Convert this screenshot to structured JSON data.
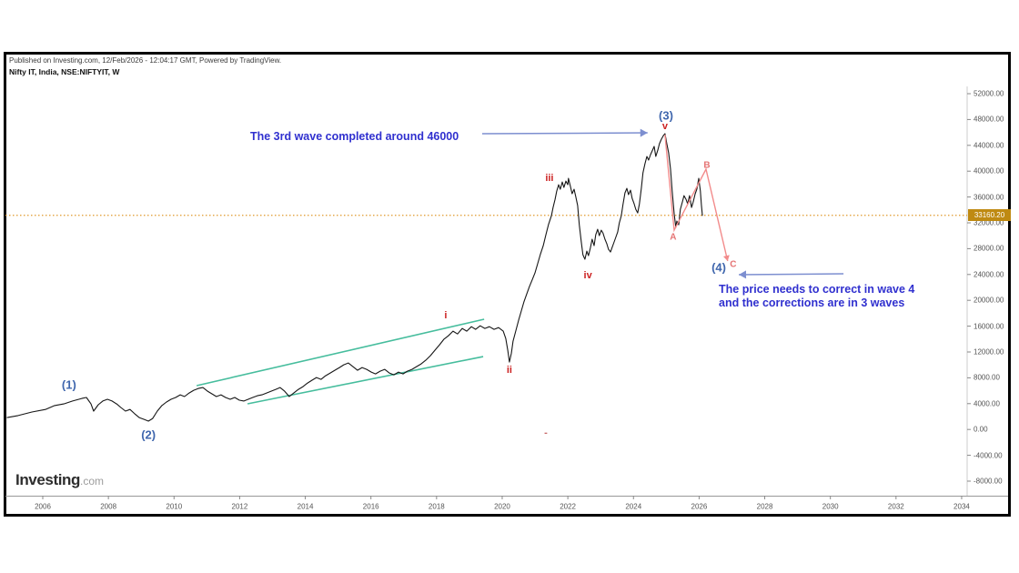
{
  "header": {
    "published_line": "Published on Investing.com, 12/Feb/2026 - 12:04:17 GMT, Powered by TradingView.",
    "symbol_line": "Nifty IT, India, NSE:NIFTYIT, W"
  },
  "logo": {
    "brand": "Investing",
    "suffix": ".com"
  },
  "colors": {
    "price_line": "#161616",
    "channel_green": "#46bd9d",
    "hline_orange": "#e19a2e",
    "badge_bg": "#bf8a12",
    "note_blue": "#3030cf",
    "arrow_blue": "#7d8fd0",
    "wave_blue": "#3f66ad",
    "wave_red": "#cc2222",
    "wave_pink": "#e57373",
    "correction_pink": "#f28b8b"
  },
  "chart_data": {
    "type": "line",
    "title": "Nifty IT, India, NSE:NIFTYIT, W",
    "xlabel": "",
    "ylabel": "",
    "grid": false,
    "legend": "none",
    "xlim": [
      2004.92,
      2034.17
    ],
    "ylim": [
      -10250,
      53130
    ],
    "x_tick_values": [
      2006,
      2008,
      2010,
      2012,
      2014,
      2016,
      2018,
      2020,
      2022,
      2024,
      2026,
      2028,
      2030,
      2032,
      2034
    ],
    "x_tick_labels": [
      "2006",
      "2008",
      "2010",
      "2012",
      "2014",
      "2016",
      "2018",
      "2020",
      "2022",
      "2024",
      "2026",
      "2028",
      "2030",
      "2032",
      "2034"
    ],
    "y_tick_values": [
      52000,
      48000,
      44000,
      40000,
      36000,
      32000,
      28000,
      24000,
      20000,
      16000,
      12000,
      8000,
      4000,
      0,
      -4000,
      -8000
    ],
    "y_tick_labels": [
      "52000.00",
      "48000.00",
      "44000.00",
      "40000.00",
      "36000.00",
      "32000.00",
      "28000.00",
      "24000.00",
      "20000.00",
      "16000.00",
      "12000.00",
      "8000.00",
      "4000.00",
      "0.00",
      "-4000.00",
      "-8000.00"
    ],
    "last_price": 33160.2,
    "last_price_label": "33160.20",
    "hline": {
      "price": 33160.2
    },
    "series": [
      {
        "name": "NIFTYIT weekly close",
        "points": [
          [
            2004.92,
            1850
          ],
          [
            2005.25,
            2150
          ],
          [
            2005.67,
            2700
          ],
          [
            2006.08,
            3100
          ],
          [
            2006.36,
            3700
          ],
          [
            2006.64,
            3950
          ],
          [
            2006.91,
            4400
          ],
          [
            2007.19,
            4800
          ],
          [
            2007.33,
            4950
          ],
          [
            2007.47,
            3950
          ],
          [
            2007.55,
            2850
          ],
          [
            2007.69,
            3830
          ],
          [
            2007.83,
            4400
          ],
          [
            2007.97,
            4675
          ],
          [
            2008.11,
            4400
          ],
          [
            2008.25,
            3950
          ],
          [
            2008.38,
            3400
          ],
          [
            2008.52,
            2850
          ],
          [
            2008.66,
            3100
          ],
          [
            2008.8,
            2430
          ],
          [
            2008.94,
            1850
          ],
          [
            2009.08,
            1570
          ],
          [
            2009.22,
            1290
          ],
          [
            2009.35,
            1700
          ],
          [
            2009.49,
            2850
          ],
          [
            2009.63,
            3700
          ],
          [
            2009.77,
            4250
          ],
          [
            2009.91,
            4675
          ],
          [
            2010.05,
            4950
          ],
          [
            2010.19,
            5370
          ],
          [
            2010.32,
            5090
          ],
          [
            2010.46,
            5650
          ],
          [
            2010.6,
            6070
          ],
          [
            2010.74,
            6350
          ],
          [
            2010.88,
            6490
          ],
          [
            2011.02,
            5930
          ],
          [
            2011.16,
            5500
          ],
          [
            2011.29,
            5090
          ],
          [
            2011.43,
            5370
          ],
          [
            2011.57,
            4950
          ],
          [
            2011.71,
            4675
          ],
          [
            2011.85,
            4950
          ],
          [
            2011.99,
            4530
          ],
          [
            2012.13,
            4400
          ],
          [
            2012.26,
            4675
          ],
          [
            2012.4,
            4950
          ],
          [
            2012.54,
            5230
          ],
          [
            2012.68,
            5370
          ],
          [
            2012.82,
            5650
          ],
          [
            2012.96,
            5930
          ],
          [
            2013.1,
            6210
          ],
          [
            2013.23,
            6490
          ],
          [
            2013.37,
            5930
          ],
          [
            2013.51,
            5090
          ],
          [
            2013.65,
            5650
          ],
          [
            2013.79,
            6210
          ],
          [
            2013.93,
            6630
          ],
          [
            2014.07,
            7200
          ],
          [
            2014.2,
            7620
          ],
          [
            2014.34,
            8040
          ],
          [
            2014.48,
            7760
          ],
          [
            2014.62,
            8320
          ],
          [
            2014.76,
            8740
          ],
          [
            2014.9,
            9170
          ],
          [
            2015.04,
            9590
          ],
          [
            2015.17,
            10010
          ],
          [
            2015.31,
            10290
          ],
          [
            2015.45,
            9730
          ],
          [
            2015.59,
            9170
          ],
          [
            2015.73,
            9590
          ],
          [
            2015.87,
            9310
          ],
          [
            2016.01,
            8890
          ],
          [
            2016.14,
            8600
          ],
          [
            2016.28,
            9030
          ],
          [
            2016.42,
            9310
          ],
          [
            2016.56,
            8740
          ],
          [
            2016.7,
            8460
          ],
          [
            2016.84,
            8890
          ],
          [
            2016.98,
            8600
          ],
          [
            2017.11,
            9030
          ],
          [
            2017.25,
            9310
          ],
          [
            2017.39,
            9730
          ],
          [
            2017.53,
            10150
          ],
          [
            2017.67,
            10710
          ],
          [
            2017.81,
            11420
          ],
          [
            2017.95,
            12260
          ],
          [
            2018.09,
            13110
          ],
          [
            2018.22,
            13950
          ],
          [
            2018.36,
            14510
          ],
          [
            2018.5,
            15220
          ],
          [
            2018.64,
            14790
          ],
          [
            2018.78,
            15640
          ],
          [
            2018.92,
            15220
          ],
          [
            2019.06,
            15920
          ],
          [
            2019.19,
            15500
          ],
          [
            2019.33,
            16060
          ],
          [
            2019.47,
            15640
          ],
          [
            2019.61,
            15920
          ],
          [
            2019.75,
            15500
          ],
          [
            2019.89,
            15780
          ],
          [
            2020.03,
            15220
          ],
          [
            2020.11,
            14090
          ],
          [
            2020.17,
            12260
          ],
          [
            2020.22,
            10430
          ],
          [
            2020.28,
            11840
          ],
          [
            2020.33,
            13670
          ],
          [
            2020.42,
            15360
          ],
          [
            2020.5,
            16910
          ],
          [
            2020.58,
            18320
          ],
          [
            2020.66,
            19730
          ],
          [
            2020.75,
            21000
          ],
          [
            2020.83,
            22130
          ],
          [
            2020.91,
            23110
          ],
          [
            2021.0,
            24240
          ],
          [
            2021.08,
            25650
          ],
          [
            2021.16,
            27060
          ],
          [
            2021.25,
            28460
          ],
          [
            2021.33,
            30150
          ],
          [
            2021.41,
            31700
          ],
          [
            2021.5,
            33110
          ],
          [
            2021.55,
            34380
          ],
          [
            2021.61,
            35650
          ],
          [
            2021.66,
            36920
          ],
          [
            2021.72,
            37900
          ],
          [
            2021.77,
            37200
          ],
          [
            2021.83,
            38320
          ],
          [
            2021.88,
            37480
          ],
          [
            2021.94,
            38460
          ],
          [
            2022.0,
            37900
          ],
          [
            2022.02,
            38880
          ],
          [
            2022.08,
            37620
          ],
          [
            2022.13,
            36500
          ],
          [
            2022.19,
            37200
          ],
          [
            2022.24,
            36080
          ],
          [
            2022.3,
            34670
          ],
          [
            2022.35,
            31700
          ],
          [
            2022.41,
            29040
          ],
          [
            2022.46,
            27060
          ],
          [
            2022.52,
            26360
          ],
          [
            2022.58,
            27620
          ],
          [
            2022.63,
            26920
          ],
          [
            2022.69,
            28180
          ],
          [
            2022.74,
            29460
          ],
          [
            2022.8,
            28460
          ],
          [
            2022.85,
            30150
          ],
          [
            2022.91,
            31000
          ],
          [
            2022.96,
            30010
          ],
          [
            2023.02,
            30860
          ],
          [
            2023.07,
            30440
          ],
          [
            2023.13,
            29460
          ],
          [
            2023.19,
            28740
          ],
          [
            2023.24,
            27900
          ],
          [
            2023.3,
            27480
          ],
          [
            2023.35,
            28180
          ],
          [
            2023.41,
            29040
          ],
          [
            2023.46,
            29740
          ],
          [
            2023.52,
            30580
          ],
          [
            2023.57,
            31990
          ],
          [
            2023.63,
            33110
          ],
          [
            2023.68,
            34800
          ],
          [
            2023.74,
            36640
          ],
          [
            2023.8,
            37340
          ],
          [
            2023.85,
            36360
          ],
          [
            2023.91,
            37060
          ],
          [
            2023.96,
            35790
          ],
          [
            2024.02,
            34940
          ],
          [
            2024.07,
            34100
          ],
          [
            2024.13,
            33530
          ],
          [
            2024.18,
            34940
          ],
          [
            2024.24,
            37340
          ],
          [
            2024.29,
            39750
          ],
          [
            2024.35,
            41150
          ],
          [
            2024.41,
            42280
          ],
          [
            2024.46,
            41720
          ],
          [
            2024.52,
            42560
          ],
          [
            2024.57,
            43120
          ],
          [
            2024.63,
            43830
          ],
          [
            2024.68,
            42280
          ],
          [
            2024.74,
            43260
          ],
          [
            2024.79,
            44250
          ],
          [
            2024.85,
            44950
          ],
          [
            2024.91,
            45510
          ],
          [
            2024.96,
            45800
          ],
          [
            2025.02,
            44110
          ],
          [
            2025.07,
            42840
          ],
          [
            2025.13,
            40310
          ],
          [
            2025.18,
            36920
          ],
          [
            2025.24,
            33400
          ],
          [
            2025.29,
            31290
          ],
          [
            2025.32,
            32270
          ],
          [
            2025.38,
            31700
          ],
          [
            2025.43,
            34100
          ],
          [
            2025.49,
            35220
          ],
          [
            2025.54,
            36210
          ],
          [
            2025.6,
            35650
          ],
          [
            2025.65,
            34940
          ],
          [
            2025.71,
            36210
          ],
          [
            2025.77,
            34380
          ],
          [
            2025.82,
            35220
          ],
          [
            2025.88,
            36500
          ],
          [
            2025.93,
            37200
          ],
          [
            2025.99,
            38880
          ],
          [
            2026.04,
            36920
          ],
          [
            2026.07,
            34800
          ],
          [
            2026.1,
            33160
          ]
        ]
      }
    ],
    "channel_lines": [
      {
        "from": [
          2010.69,
          6790
        ],
        "to": [
          2019.45,
          17070
        ]
      },
      {
        "from": [
          2012.24,
          3970
        ],
        "to": [
          2019.42,
          11290
        ]
      }
    ],
    "correction_path": {
      "points": [
        [
          2024.96,
          45660
        ],
        [
          2025.24,
          30870
        ],
        [
          2026.21,
          40310
        ],
        [
          2026.87,
          26080
        ]
      ]
    },
    "arrows": [
      {
        "id": "wave3-arrow",
        "from": [
          2019.39,
          45800
        ],
        "to": [
          2024.43,
          45940
        ]
      },
      {
        "id": "wave4-arrow",
        "from": [
          2030.4,
          24110
        ],
        "to": [
          2027.21,
          23970
        ]
      }
    ],
    "annotations": [
      {
        "id": "wave-1",
        "text": "(1)",
        "at": [
          2006.8,
          6930
        ],
        "style": "wave-blue"
      },
      {
        "id": "wave-2",
        "text": "(2)",
        "at": [
          2009.22,
          -820
        ],
        "style": "wave-blue"
      },
      {
        "id": "wave-3",
        "text": "(3)",
        "at": [
          2024.99,
          48620
        ],
        "style": "wave-blue"
      },
      {
        "id": "wave-4",
        "text": "(4)",
        "at": [
          2026.6,
          25100
        ],
        "style": "wave-blue"
      },
      {
        "id": "sub-i",
        "text": "i",
        "at": [
          2018.28,
          17630
        ],
        "style": "wave-red"
      },
      {
        "id": "sub-ii",
        "text": "ii",
        "at": [
          2020.22,
          9180
        ],
        "style": "wave-red"
      },
      {
        "id": "sub-iii",
        "text": "iii",
        "at": [
          2021.44,
          38900
        ],
        "style": "wave-red"
      },
      {
        "id": "sub-iv",
        "text": "iv",
        "at": [
          2022.61,
          23830
        ],
        "style": "wave-red"
      },
      {
        "id": "sub-v",
        "text": "v",
        "at": [
          2024.96,
          46930
        ],
        "style": "wave-red"
      },
      {
        "id": "corr-A",
        "text": "A",
        "at": [
          2025.21,
          29750
        ],
        "style": "wave-pink"
      },
      {
        "id": "corr-B",
        "text": "B",
        "at": [
          2026.24,
          40870
        ],
        "style": "wave-pink"
      },
      {
        "id": "corr-C",
        "text": "C",
        "at": [
          2027.04,
          25520
        ],
        "style": "wave-pink"
      },
      {
        "id": "note-wave3",
        "text": "The 3rd wave completed around 46000",
        "at": [
          2012.32,
          45380
        ],
        "style": "note",
        "anchor": "left"
      },
      {
        "id": "note-wave4",
        "text": "The price needs to correct in wave 4\nand the corrections are in 3 waves",
        "at": [
          2026.6,
          20590
        ],
        "style": "note",
        "anchor": "left"
      },
      {
        "id": "stray-dash",
        "text": "-",
        "at": [
          2021.33,
          -540
        ],
        "style": "stray"
      }
    ]
  }
}
